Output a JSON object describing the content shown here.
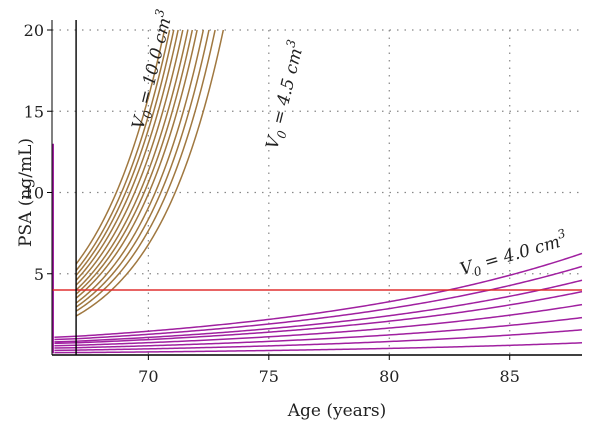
{
  "chart_data": {
    "type": "line",
    "title": "",
    "xlabel": "Age (years)",
    "ylabel": "PSA (ng/mL)",
    "xlim": [
      66,
      88
    ],
    "ylim": [
      0,
      20
    ],
    "x_ticks": [
      70,
      75,
      80,
      85
    ],
    "y_ticks": [
      5,
      10,
      15,
      20
    ],
    "x_tick_labels": [
      "70",
      "75",
      "80",
      "85"
    ],
    "y_tick_labels": [
      "5",
      "10",
      "15",
      "20"
    ],
    "grid": "dotted",
    "threshold": {
      "name": "PSA = 4",
      "y": 4,
      "x_start": 66,
      "x_end": 88,
      "color": "#e03030"
    },
    "diagnosis_age": 67,
    "annotations": [
      {
        "prefix": "V",
        "subscript": "0",
        "text": " = 10.0 cm",
        "superscript": "3",
        "angle": -76,
        "color": "#222"
      },
      {
        "prefix": "V",
        "subscript": "0",
        "text": " = 4.5 cm",
        "superscript": "3",
        "angle": -76,
        "color": "#222"
      },
      {
        "prefix": "V",
        "subscript": "0",
        "text": " = 4.0 cm",
        "superscript": "3",
        "angle": -16,
        "color": "#222"
      }
    ],
    "colors": {
      "brown": "#a07840",
      "purple": "#a020a0",
      "red": "#e03030"
    },
    "series_groups": [
      {
        "group": "brown",
        "color": "#a07840",
        "x_start": 67,
        "growth_rate": 0.347,
        "curves": [
          {
            "v0": 4.5,
            "y_start": 2.4
          },
          {
            "v0": 5.0,
            "y_start": 2.7
          },
          {
            "v0": 5.5,
            "y_start": 2.95
          },
          {
            "v0": 6.0,
            "y_start": 3.2
          },
          {
            "v0": 6.5,
            "y_start": 3.5
          },
          {
            "v0": 7.0,
            "y_start": 3.75
          },
          {
            "v0": 7.5,
            "y_start": 4.0
          },
          {
            "v0": 8.0,
            "y_start": 4.3
          },
          {
            "v0": 8.5,
            "y_start": 4.6
          },
          {
            "v0": 9.0,
            "y_start": 4.9
          },
          {
            "v0": 9.5,
            "y_start": 5.2
          },
          {
            "v0": 10.0,
            "y_start": 5.6
          }
        ]
      },
      {
        "group": "purple",
        "color": "#a020a0",
        "x_start": 67,
        "x_end": 88,
        "curves": [
          {
            "v0": 0.5,
            "y_start": 0.15,
            "y_end": 0.75
          },
          {
            "v0": 1.0,
            "y_start": 0.3,
            "y_end": 1.55
          },
          {
            "v0": 1.5,
            "y_start": 0.45,
            "y_end": 2.3
          },
          {
            "v0": 2.0,
            "y_start": 0.6,
            "y_end": 3.1
          },
          {
            "v0": 2.5,
            "y_start": 0.75,
            "y_end": 3.9
          },
          {
            "v0": 3.0,
            "y_start": 0.85,
            "y_end": 4.6
          },
          {
            "v0": 3.5,
            "y_start": 1.0,
            "y_end": 5.45
          },
          {
            "v0": 4.0,
            "y_start": 1.15,
            "y_end": 6.25
          }
        ]
      }
    ],
    "spike": {
      "x": 66.05,
      "y_top": 13.0,
      "y_bottom": 0.1,
      "color": "#a020a0"
    }
  }
}
